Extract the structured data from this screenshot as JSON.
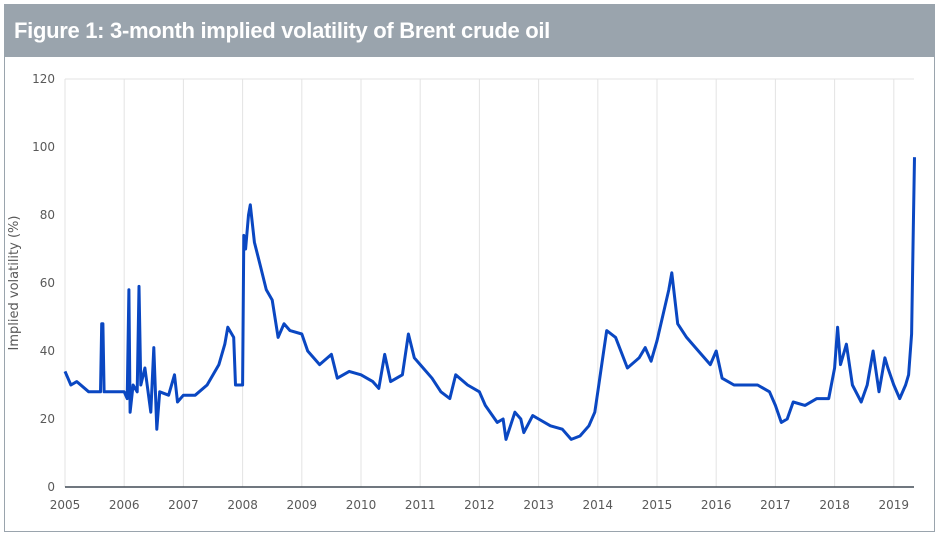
{
  "header": {
    "title": "Figure 1: 3-month implied volatility of Brent crude oil"
  },
  "chart_data": {
    "type": "line",
    "title": "Figure 1: 3-month implied volatility of Brent crude oil",
    "xlabel": "",
    "ylabel": "Implied volatility (%)",
    "xlim": [
      2005,
      2019.35
    ],
    "ylim": [
      0,
      120
    ],
    "x_ticks": [
      "2005",
      "2006",
      "2007",
      "2008",
      "2009",
      "2010",
      "2011",
      "2012",
      "2013",
      "2014",
      "2015",
      "2016",
      "2017",
      "2018",
      "2019"
    ],
    "y_ticks": [
      "0",
      "20",
      "40",
      "60",
      "80",
      "100",
      "120"
    ],
    "grid": "vertical",
    "color": "#0a47c2",
    "series": [
      {
        "x": [
          2005.0,
          2005.1,
          2005.2,
          2005.4,
          2005.6,
          2005.62,
          2005.64,
          2005.66,
          2006.0,
          2006.05,
          2006.08,
          2006.1,
          2006.15,
          2006.22,
          2006.25,
          2006.28,
          2006.35,
          2006.45,
          2006.5,
          2006.55,
          2006.6,
          2006.75,
          2006.85,
          2006.9,
          2007.0,
          2007.2,
          2007.4,
          2007.6,
          2007.7,
          2007.75,
          2007.85,
          2007.88,
          2007.9,
          2008.0,
          2008.02,
          2008.05,
          2008.1,
          2008.13,
          2008.2,
          2008.3,
          2008.4,
          2008.5,
          2008.6,
          2008.7,
          2008.8,
          2009.0,
          2009.1,
          2009.3,
          2009.5,
          2009.6,
          2009.8,
          2010.0,
          2010.2,
          2010.3,
          2010.4,
          2010.5,
          2010.7,
          2010.8,
          2010.9,
          2011.0,
          2011.2,
          2011.35,
          2011.5,
          2011.6,
          2011.8,
          2012.0,
          2012.1,
          2012.3,
          2012.4,
          2012.45,
          2012.6,
          2012.7,
          2012.75,
          2012.9,
          2013.0,
          2013.2,
          2013.4,
          2013.55,
          2013.7,
          2013.85,
          2013.95,
          2014.0,
          2014.1,
          2014.15,
          2014.3,
          2014.5,
          2014.7,
          2014.8,
          2014.9,
          2015.0,
          2015.2,
          2015.25,
          2015.35,
          2015.5,
          2015.7,
          2015.9,
          2016.0,
          2016.1,
          2016.3,
          2016.5,
          2016.7,
          2016.9,
          2017.0,
          2017.1,
          2017.2,
          2017.3,
          2017.5,
          2017.7,
          2017.9,
          2018.0,
          2018.05,
          2018.1,
          2018.2,
          2018.3,
          2018.45,
          2018.55,
          2018.65,
          2018.75,
          2018.85,
          2018.9,
          2019.0,
          2019.1,
          2019.2,
          2019.25,
          2019.3,
          2019.33,
          2019.35
        ],
        "values": [
          34,
          30,
          31,
          28,
          28,
          48,
          48,
          28,
          28,
          26,
          58,
          22,
          30,
          28,
          59,
          30,
          35,
          22,
          41,
          17,
          28,
          27,
          33,
          25,
          27,
          27,
          30,
          36,
          42,
          47,
          44,
          30,
          30,
          30,
          74,
          70,
          80,
          83,
          72,
          65,
          58,
          55,
          44,
          48,
          46,
          45,
          40,
          36,
          39,
          32,
          34,
          33,
          31,
          29,
          39,
          31,
          33,
          45,
          38,
          36,
          32,
          28,
          26,
          33,
          30,
          28,
          24,
          19,
          20,
          14,
          22,
          20,
          16,
          21,
          20,
          18,
          17,
          14,
          15,
          18,
          22,
          28,
          40,
          46,
          44,
          35,
          38,
          41,
          37,
          43,
          58,
          63,
          48,
          44,
          40,
          36,
          40,
          32,
          30,
          30,
          30,
          28,
          24,
          19,
          20,
          25,
          24,
          26,
          26,
          35,
          47,
          36,
          42,
          30,
          25,
          30,
          40,
          28,
          38,
          35,
          30,
          26,
          30,
          33,
          45,
          76,
          97
        ]
      }
    ]
  }
}
